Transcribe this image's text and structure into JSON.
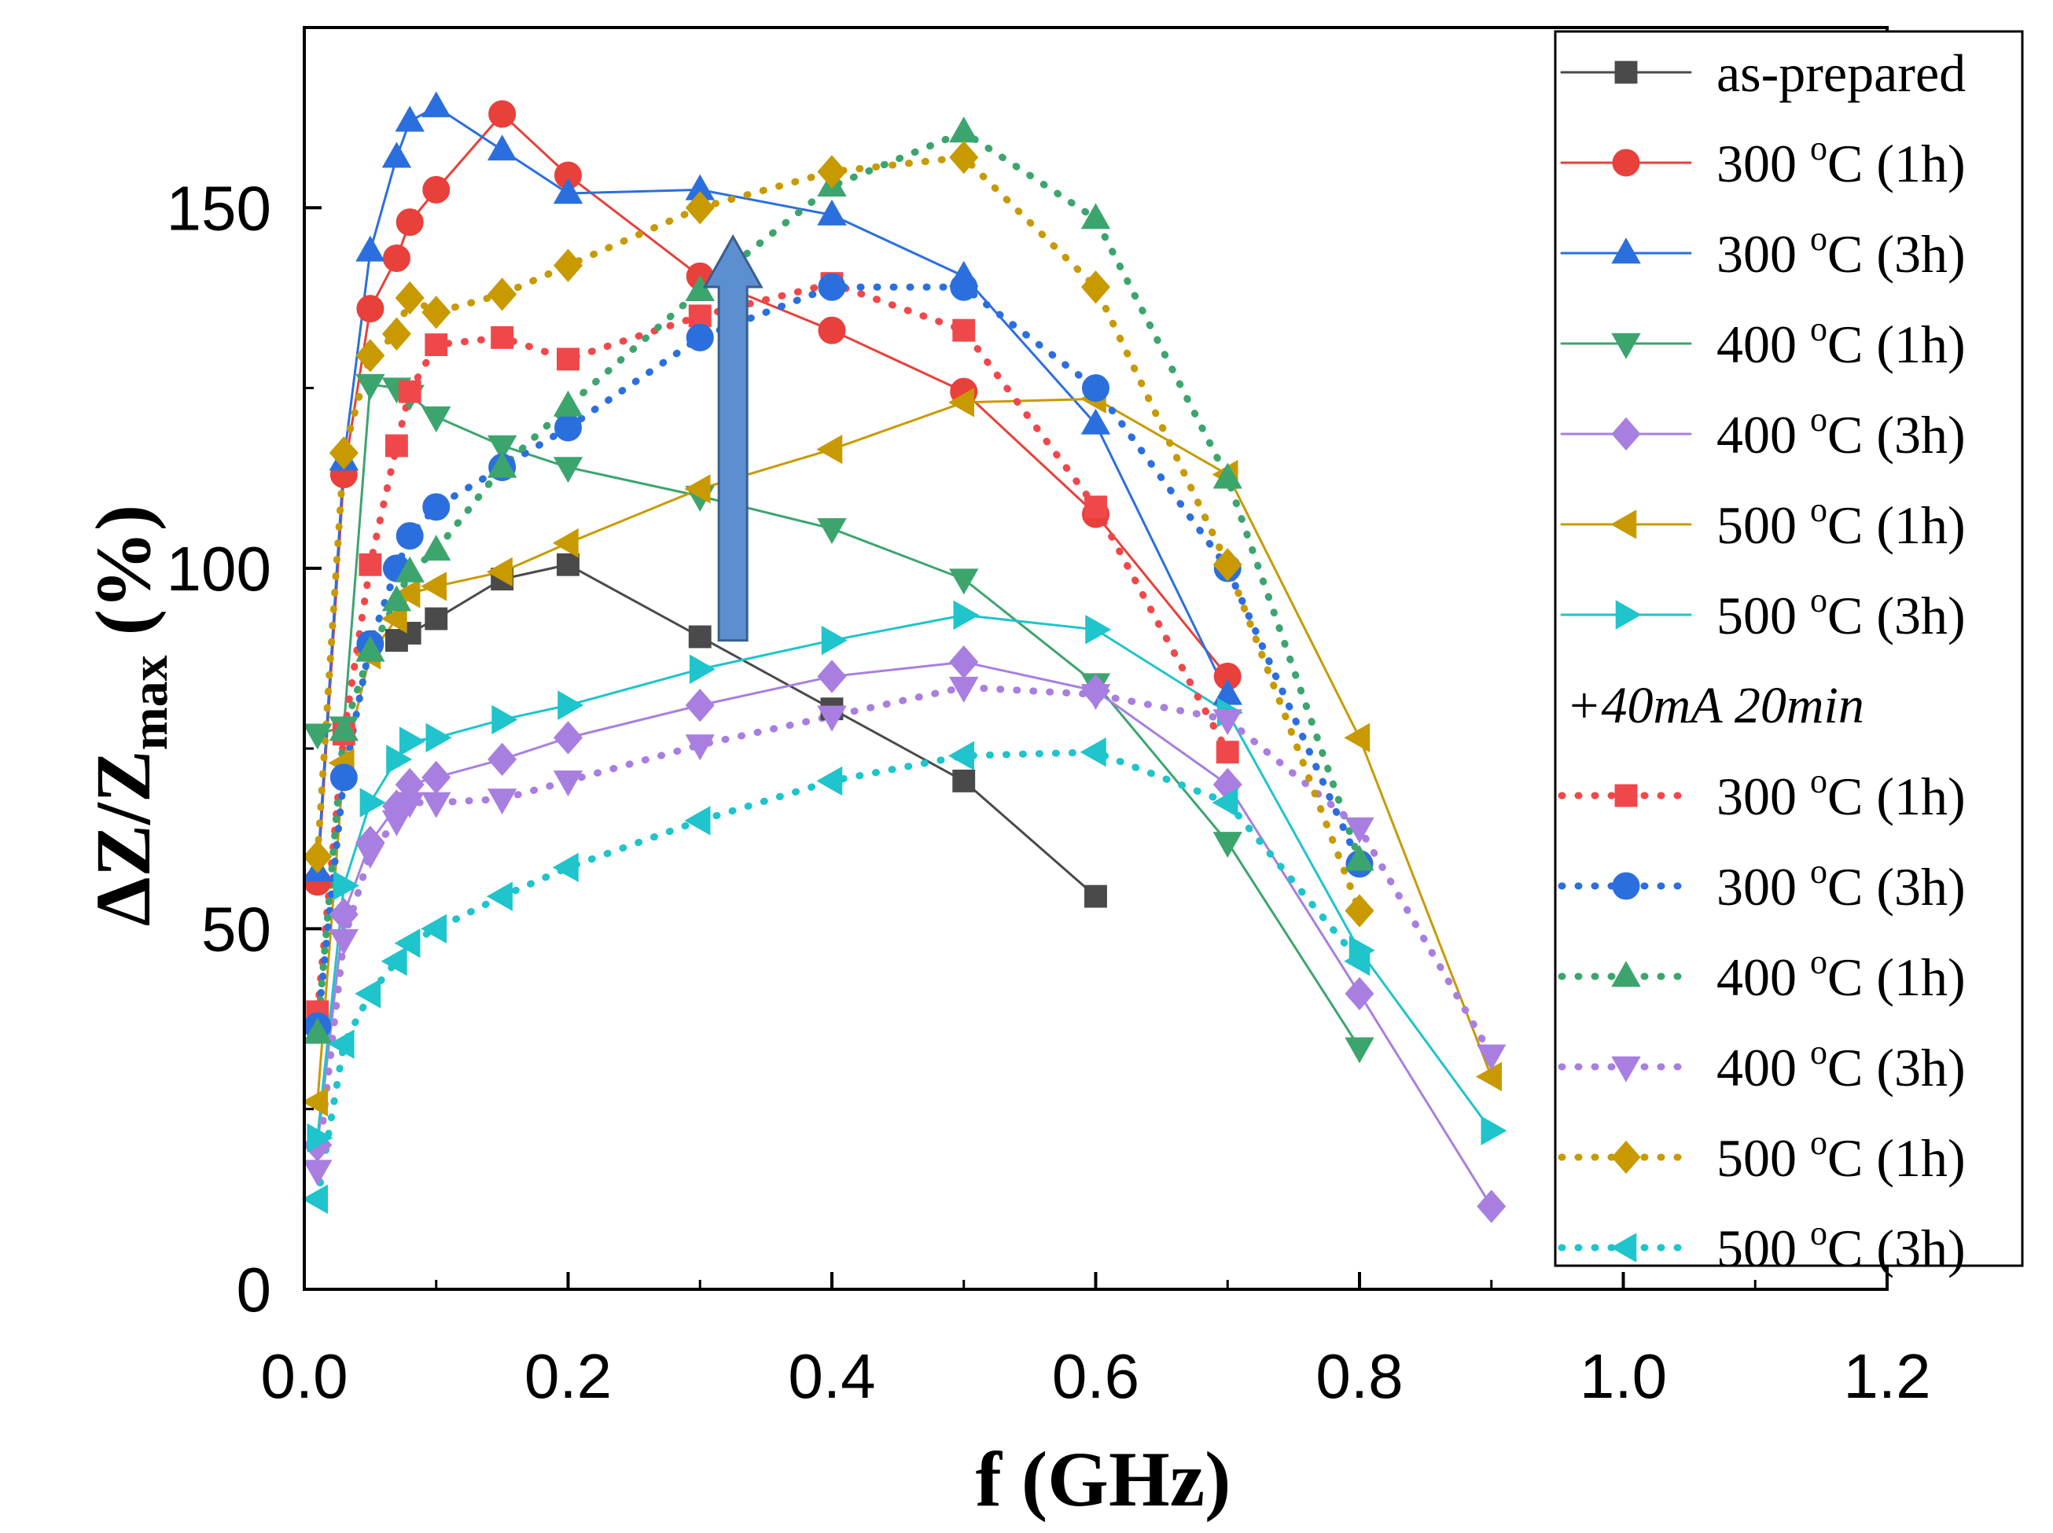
{
  "chart_data": {
    "type": "line",
    "title": "",
    "xlabel": "f (GHz)",
    "ylabel": {
      "main": "ΔZ/Z",
      "subscript": "max",
      "suffix": " (%)"
    },
    "xlim": [
      0,
      1.2
    ],
    "ylim": [
      0,
      175
    ],
    "xticks": [
      0,
      0.2,
      0.4,
      0.6,
      0.8,
      1.0,
      1.2
    ],
    "xtick_labels": [
      "0.0",
      "0.2",
      "0.4",
      "0.6",
      "0.8",
      "1.0",
      "1.2"
    ],
    "yticks": [
      0,
      50,
      100,
      150
    ],
    "ytick_labels": [
      "0",
      "50",
      "100",
      "150"
    ],
    "grid": false,
    "legend_position": "top-right",
    "legend_group_label": "+40mA 20min",
    "series": [
      {
        "name": "as-prepared",
        "label_main": "as-prepared",
        "label_sup": "",
        "label_rest": "",
        "group": "base",
        "color": "#4a4a4a",
        "marker": "square",
        "dashed": false,
        "x": [
          0.07,
          0.08,
          0.1,
          0.15,
          0.2,
          0.3,
          0.4,
          0.5,
          0.6
        ],
        "y": [
          90,
          91,
          93,
          98.5,
          100.5,
          90.5,
          80.5,
          70.5,
          54.5
        ]
      },
      {
        "name": "300 oC (1h)",
        "label_main": "300 ",
        "label_sup": "o",
        "label_rest": "C (1h)",
        "group": "base",
        "color": "#e8403a",
        "marker": "circle",
        "dashed": false,
        "x": [
          0.01,
          0.03,
          0.05,
          0.07,
          0.08,
          0.1,
          0.15,
          0.2,
          0.3,
          0.4,
          0.5,
          0.6,
          0.7
        ],
        "y": [
          56.5,
          113,
          136,
          143,
          148,
          152.5,
          163,
          154.5,
          140.5,
          133,
          124.5,
          107.5,
          85
        ]
      },
      {
        "name": "300 oC (3h)",
        "label_main": "300 ",
        "label_sup": "o",
        "label_rest": "C (3h)",
        "group": "base",
        "color": "#2b6fde",
        "marker": "triangle-up",
        "dashed": false,
        "x": [
          0.01,
          0.03,
          0.05,
          0.07,
          0.08,
          0.1,
          0.15,
          0.2,
          0.3,
          0.4,
          0.5,
          0.6,
          0.7
        ],
        "y": [
          58,
          115,
          144,
          157,
          162,
          164,
          158,
          152,
          152.5,
          149,
          140.5,
          120,
          82.5
        ]
      },
      {
        "name": "400 oC (1h)",
        "label_main": "400 ",
        "label_sup": "o",
        "label_rest": "C (1h)",
        "group": "base",
        "color": "#3ca56e",
        "marker": "triangle-down",
        "dashed": false,
        "x": [
          0.01,
          0.03,
          0.05,
          0.07,
          0.08,
          0.1,
          0.15,
          0.2,
          0.3,
          0.4,
          0.5,
          0.6,
          0.7,
          0.8
        ],
        "y": [
          77,
          78,
          125.5,
          125,
          124,
          121,
          117,
          114,
          110,
          105.5,
          98.5,
          84,
          62,
          33.5
        ]
      },
      {
        "name": "400 oC (3h)",
        "label_main": "400 ",
        "label_sup": "o",
        "label_rest": "C (3h)",
        "group": "base",
        "color": "#a87fe0",
        "marker": "diamond",
        "dashed": false,
        "x": [
          0.01,
          0.03,
          0.05,
          0.07,
          0.08,
          0.1,
          0.15,
          0.2,
          0.3,
          0.4,
          0.5,
          0.6,
          0.7,
          0.8,
          0.9
        ],
        "y": [
          20,
          52,
          62,
          67,
          70,
          71,
          73.5,
          76.5,
          81,
          85,
          87,
          83,
          70,
          41,
          11.5
        ]
      },
      {
        "name": "500 oC (1h)",
        "label_main": "500 ",
        "label_sup": "o",
        "label_rest": "C (1h)",
        "group": "base",
        "color": "#c89a00",
        "marker": "triangle-left",
        "dashed": false,
        "x": [
          0.01,
          0.03,
          0.05,
          0.07,
          0.08,
          0.1,
          0.15,
          0.2,
          0.3,
          0.4,
          0.5,
          0.6,
          0.7,
          0.8,
          0.9
        ],
        "y": [
          26,
          73,
          88,
          93,
          96.5,
          97.5,
          99.5,
          103.5,
          111,
          116.5,
          123,
          123.5,
          113,
          76.5,
          29.5
        ]
      },
      {
        "name": "500 oC (3h)",
        "label_main": "500 ",
        "label_sup": "o",
        "label_rest": "C (3h)",
        "group": "base",
        "color": "#1fc4cc",
        "marker": "triangle-right",
        "dashed": false,
        "x": [
          0.01,
          0.03,
          0.05,
          0.07,
          0.08,
          0.1,
          0.15,
          0.2,
          0.3,
          0.4,
          0.5,
          0.6,
          0.7,
          0.8,
          0.9
        ],
        "y": [
          21,
          56,
          67.5,
          73.5,
          76,
          76.5,
          79,
          81,
          86,
          90,
          93.5,
          91.5,
          80,
          47,
          22
        ]
      },
      {
        "name": "300 oC (1h) +40mA 20min",
        "label_main": "300 ",
        "label_sup": "o",
        "label_rest": "C (1h)",
        "group": "current",
        "color": "#f0484a",
        "marker": "square",
        "dashed": true,
        "x": [
          0.01,
          0.03,
          0.05,
          0.07,
          0.08,
          0.1,
          0.15,
          0.2,
          0.3,
          0.4,
          0.5,
          0.6,
          0.7
        ],
        "y": [
          38.5,
          77,
          100.5,
          117,
          124.5,
          131,
          132,
          129,
          135,
          139.5,
          133,
          108.5,
          74.5
        ]
      },
      {
        "name": "300 oC (3h) +40mA 20min",
        "label_main": "300 ",
        "label_sup": "o",
        "label_rest": "C (3h)",
        "group": "current",
        "color": "#2b6fde",
        "marker": "circle",
        "dashed": true,
        "x": [
          0.01,
          0.03,
          0.05,
          0.07,
          0.08,
          0.1,
          0.15,
          0.2,
          0.3,
          0.4,
          0.5,
          0.6,
          0.7,
          0.8
        ],
        "y": [
          36.5,
          71,
          89.5,
          100,
          104.5,
          108.5,
          114,
          119.5,
          132,
          139,
          139,
          125,
          100,
          59
        ]
      },
      {
        "name": "400 oC (1h) +40mA 20min",
        "label_main": "400 ",
        "label_sup": "o",
        "label_rest": "C (1h)",
        "group": "current",
        "color": "#3ca56e",
        "marker": "triangle-up",
        "dashed": true,
        "x": [
          0.01,
          0.03,
          0.05,
          0.07,
          0.08,
          0.1,
          0.15,
          0.2,
          0.3,
          0.4,
          0.5,
          0.6,
          0.7,
          0.8
        ],
        "y": [
          35.5,
          77.5,
          88.5,
          95.5,
          99.5,
          102.5,
          114,
          122.5,
          138.5,
          153,
          160.5,
          148.5,
          112.5,
          59.5
        ]
      },
      {
        "name": "400 oC (3h) +40mA 20min",
        "label_main": "400 ",
        "label_sup": "o",
        "label_rest": "C (3h)",
        "group": "current",
        "color": "#a87fe0",
        "marker": "triangle-down",
        "dashed": true,
        "x": [
          0.01,
          0.03,
          0.05,
          0.07,
          0.08,
          0.1,
          0.15,
          0.2,
          0.3,
          0.4,
          0.5,
          0.6,
          0.7,
          0.8,
          0.9
        ],
        "y": [
          16.5,
          48.5,
          60.5,
          65,
          67.5,
          67.5,
          68,
          70.5,
          75.5,
          79.5,
          83.5,
          82.5,
          79,
          64,
          32.5
        ]
      },
      {
        "name": "500 oC (1h) +40mA 20min",
        "label_main": "500 ",
        "label_sup": "o",
        "label_rest": "C (1h)",
        "group": "current",
        "color": "#c89a00",
        "marker": "diamond",
        "dashed": true,
        "x": [
          0.01,
          0.03,
          0.05,
          0.07,
          0.08,
          0.1,
          0.15,
          0.2,
          0.3,
          0.4,
          0.5,
          0.6,
          0.7,
          0.8
        ],
        "y": [
          60,
          116,
          129.5,
          132.5,
          137.5,
          135.5,
          138,
          142,
          150,
          155,
          157,
          139,
          100.5,
          52.5
        ]
      },
      {
        "name": "500 oC (3h) +40mA 20min",
        "label_main": "500 ",
        "label_sup": "o",
        "label_rest": "C (3h)",
        "group": "current",
        "color": "#1fc4cc",
        "marker": "triangle-left",
        "dashed": true,
        "x": [
          0.01,
          0.03,
          0.05,
          0.07,
          0.08,
          0.1,
          0.15,
          0.2,
          0.3,
          0.4,
          0.5,
          0.6,
          0.7,
          0.8
        ],
        "y": [
          12.5,
          34,
          41,
          45.5,
          48,
          50,
          54.5,
          58.5,
          65,
          70.5,
          74,
          74.5,
          67.5,
          45.5
        ]
      }
    ],
    "annotations": [
      {
        "type": "arrow",
        "direction": "up",
        "color": "#5b8fd0",
        "from": [
          0.325,
          90
        ],
        "to": [
          0.325,
          146
        ]
      }
    ]
  }
}
